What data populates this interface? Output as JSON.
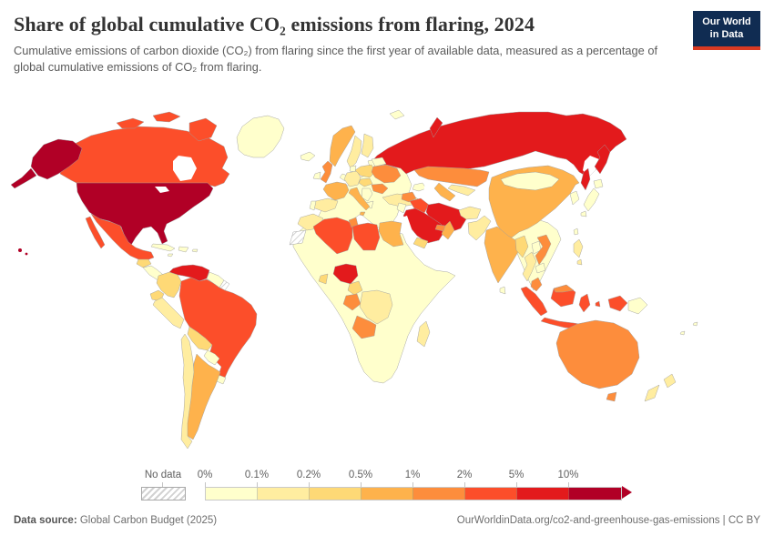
{
  "header": {
    "title": "Share of global cumulative CO₂ emissions from flaring, 2024",
    "subtitle": "Cumulative emissions of carbon dioxide (CO₂) from flaring since the first year of available data, measured as a percentage of global cumulative emissions of CO₂ from flaring.",
    "logo": {
      "line1": "Our World",
      "line2": "in Data",
      "bg": "#102c52",
      "accent": "#d93a22"
    }
  },
  "legend": {
    "no_data_label": "No data",
    "ticks": [
      "0%",
      "0.1%",
      "0.2%",
      "0.5%",
      "1%",
      "2%",
      "5%",
      "10%"
    ]
  },
  "footer": {
    "source_label": "Data source:",
    "source_value": " Global Carbon Budget (2025)",
    "credit": "OurWorldinData.org/co2-and-greenhouse-gas-emissions | CC BY"
  },
  "chart_data": {
    "type": "choropleth",
    "title": "Share of global cumulative CO₂ emissions from flaring, 2024",
    "unit": "% of global cumulative flaring CO₂ emissions",
    "legend_position": "bottom",
    "palette": [
      "#FFFFCC",
      "#FFEDA0",
      "#FED976",
      "#FEB24C",
      "#FD8D3C",
      "#FC4E2A",
      "#E31A1C",
      "#B10026"
    ],
    "bin_edges_percent": [
      0,
      0.1,
      0.2,
      0.5,
      1,
      2,
      5,
      10
    ],
    "bins": [
      "0–0.1%",
      "0.1–0.2%",
      "0.2–0.5%",
      "0.5–1%",
      "1–2%",
      "2–5%",
      "5–10%",
      ">10%"
    ],
    "no_data_countries": [
      "french-guiana",
      "western-sahara"
    ],
    "countries": {
      "united-states": 7,
      "russia": 6,
      "venezuela": 6,
      "nigeria": 6,
      "saudi-arabia": 6,
      "iran": 6,
      "canada": 5,
      "mexico": 5,
      "brazil": 5,
      "algeria": 5,
      "libya": 5,
      "iraq": 5,
      "indonesia": 5,
      "united-kingdom": 4,
      "ukraine": 4,
      "romania": 4,
      "kazakhstan": 4,
      "syria": 4,
      "gabon-congo": 4,
      "angola": 4,
      "tunisia": 4,
      "vietnam": 4,
      "malaysia": 4,
      "united-arab-emirates": 4,
      "australia": 4,
      "argentina": 3,
      "norway": 3,
      "france": 3,
      "italy": 3,
      "china": 3,
      "india": 3,
      "egypt": 3,
      "oman": 3,
      "turkmenistan": 3,
      "colombia": 2,
      "ecuador": 2,
      "bolivia": 2,
      "poland": 2,
      "cameroon": 2,
      "ghana": 2,
      "myanmar": 2,
      "yemen": 2,
      "guatemala": 2,
      "czech-hungary": 2,
      "peru": 1,
      "chile": 1,
      "germany": 1,
      "spain": 1,
      "sweden": 1,
      "finland": 1,
      "turkey": 1,
      "pakistan": 1,
      "afghanistan": 1,
      "uzbekistan": 1,
      "thailand": 1,
      "philippines": 1,
      "new-zealand": 1,
      "dr-congo": 1,
      "madagascar": 1,
      "morocco": 1,
      "greenland": 0,
      "mongolia": 0,
      "paraguay": 0,
      "uruguay": 0,
      "papua-new-guinea": 0,
      "japan": 0,
      "korea": 0,
      "cuba": 0,
      "hispaniola": 0,
      "iceland": 0,
      "ireland": 0,
      "denmark": 0,
      "portugal": 0,
      "balkans": 0,
      "greece": 0,
      "baltics": 0,
      "belarus": 0,
      "netherlands-belgium": 0,
      "central-america": 0,
      "guyana-suriname": 0,
      "sri-lanka": 0,
      "bangladesh": 0,
      "nepal": 0,
      "cambodia": 0,
      "laos": 0,
      "jordan-israel": 0,
      "caucasus": 0,
      "taiwan": 0,
      "svalbard": 0,
      "jamaica": 0,
      "puerto-rico": 0,
      "pacific-islands": 0,
      "rest-of-world": 0
    }
  }
}
